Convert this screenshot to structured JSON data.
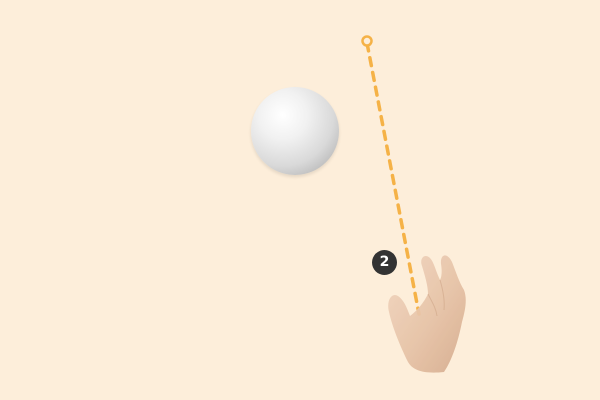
{
  "step": {
    "number": "2"
  },
  "colors": {
    "background": "#FDEEDA",
    "trajectory": "#F5B247",
    "badge": "#333333",
    "ball": "#E6E6E6",
    "hand": "#E8C6AA"
  },
  "icons": {
    "target": "target-ring-icon",
    "hand": "hand-pointer-icon"
  }
}
